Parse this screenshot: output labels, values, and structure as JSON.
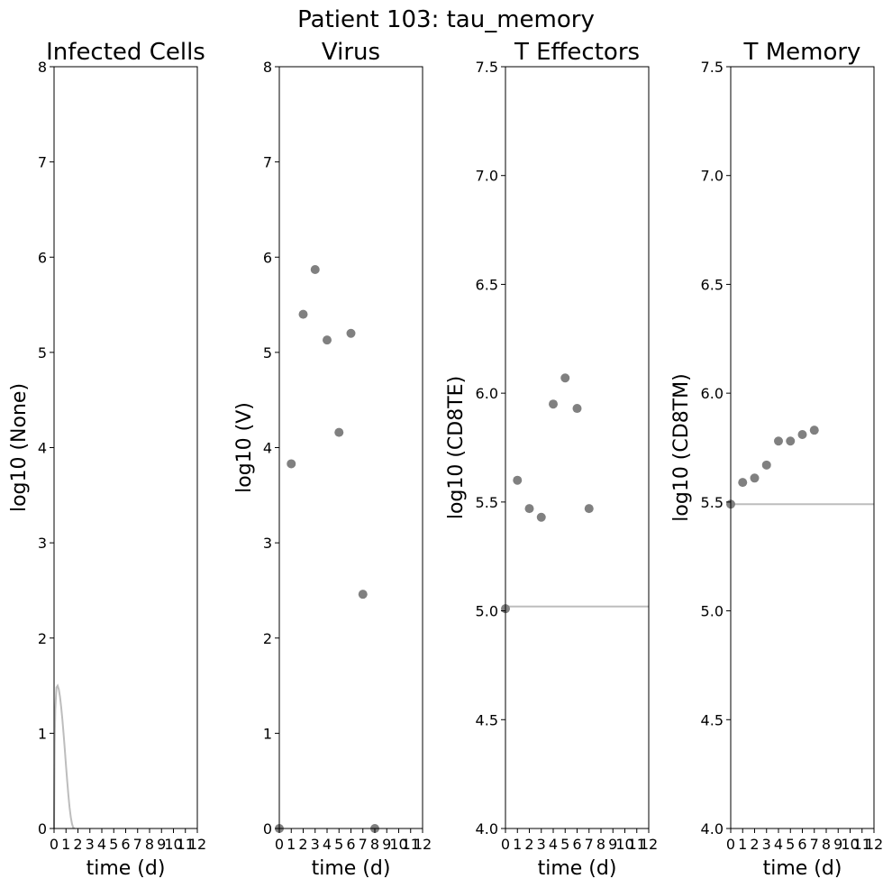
{
  "figure": {
    "suptitle": "Patient 103: tau_memory"
  },
  "chart_data": [
    {
      "type": "scatter",
      "title": "Infected Cells",
      "xlabel": "time (d)",
      "ylabel": "log10 (None)",
      "xlim": [
        0,
        12
      ],
      "ylim": [
        0,
        8
      ],
      "xticks": [
        0,
        1,
        2,
        3,
        4,
        5,
        6,
        7,
        8,
        9,
        10,
        11,
        12
      ],
      "yticks": [
        0,
        1,
        2,
        3,
        4,
        5,
        6,
        7,
        8
      ],
      "ytick_labels": [
        "0",
        "1",
        "2",
        "3",
        "4",
        "5",
        "6",
        "7",
        "8"
      ],
      "grid": false,
      "points": [],
      "model_curve": {
        "x": [
          0.0,
          0.05,
          0.1,
          0.2,
          0.3,
          0.4,
          0.5,
          0.6,
          0.7,
          0.8,
          0.9,
          1.0,
          1.1,
          1.2,
          1.3,
          1.4,
          1.5,
          1.6,
          1.7
        ],
        "y": [
          0.0,
          0.9,
          1.25,
          1.48,
          1.5,
          1.46,
          1.38,
          1.27,
          1.14,
          0.99,
          0.83,
          0.66,
          0.5,
          0.35,
          0.22,
          0.12,
          0.05,
          0.01,
          0.0
        ]
      },
      "colors": {
        "points": "#808080",
        "curve": "#bdbdbd"
      }
    },
    {
      "type": "scatter",
      "title": "Virus",
      "xlabel": "time (d)",
      "ylabel": "log10 (V)",
      "xlim": [
        0,
        12
      ],
      "ylim": [
        0,
        8
      ],
      "xticks": [
        0,
        1,
        2,
        3,
        4,
        5,
        6,
        7,
        8,
        9,
        10,
        11,
        12
      ],
      "yticks": [
        0,
        1,
        2,
        3,
        4,
        5,
        6,
        7,
        8
      ],
      "ytick_labels": [
        "0",
        "1",
        "2",
        "3",
        "4",
        "5",
        "6",
        "7",
        "8"
      ],
      "grid": false,
      "points": [
        {
          "x": 0,
          "y": 0.0
        },
        {
          "x": 1,
          "y": 3.83
        },
        {
          "x": 2,
          "y": 5.4
        },
        {
          "x": 3,
          "y": 5.87
        },
        {
          "x": 4,
          "y": 5.13
        },
        {
          "x": 5,
          "y": 4.16
        },
        {
          "x": 6,
          "y": 5.2
        },
        {
          "x": 7,
          "y": 2.46
        },
        {
          "x": 8,
          "y": 0.0
        }
      ],
      "model_curve": null,
      "colors": {
        "points": "#808080",
        "curve": "#bdbdbd"
      }
    },
    {
      "type": "scatter",
      "title": "T Effectors",
      "xlabel": "time (d)",
      "ylabel": "log10 (CD8TE)",
      "xlim": [
        0,
        12
      ],
      "ylim": [
        4.0,
        7.5
      ],
      "xticks": [
        0,
        1,
        2,
        3,
        4,
        5,
        6,
        7,
        8,
        9,
        10,
        11,
        12
      ],
      "yticks": [
        4.0,
        4.5,
        5.0,
        5.5,
        6.0,
        6.5,
        7.0,
        7.5
      ],
      "ytick_labels": [
        "4.0",
        "4.5",
        "5.0",
        "5.5",
        "6.0",
        "6.5",
        "7.0",
        "7.5"
      ],
      "grid": false,
      "points": [
        {
          "x": 0,
          "y": 5.01
        },
        {
          "x": 1,
          "y": 5.6
        },
        {
          "x": 2,
          "y": 5.47
        },
        {
          "x": 3,
          "y": 5.43
        },
        {
          "x": 4,
          "y": 5.95
        },
        {
          "x": 5,
          "y": 6.07
        },
        {
          "x": 6,
          "y": 5.93
        },
        {
          "x": 7,
          "y": 5.47
        }
      ],
      "model_curve": {
        "x": [
          0,
          12
        ],
        "y": [
          5.02,
          5.02
        ]
      },
      "colors": {
        "points": "#808080",
        "curve": "#bdbdbd"
      }
    },
    {
      "type": "scatter",
      "title": "T Memory",
      "xlabel": "time (d)",
      "ylabel": "log10 (CD8TM)",
      "xlim": [
        0,
        12
      ],
      "ylim": [
        4.0,
        7.5
      ],
      "xticks": [
        0,
        1,
        2,
        3,
        4,
        5,
        6,
        7,
        8,
        9,
        10,
        11,
        12
      ],
      "yticks": [
        4.0,
        4.5,
        5.0,
        5.5,
        6.0,
        6.5,
        7.0,
        7.5
      ],
      "ytick_labels": [
        "4.0",
        "4.5",
        "5.0",
        "5.5",
        "6.0",
        "6.5",
        "7.0",
        "7.5"
      ],
      "grid": false,
      "points": [
        {
          "x": 0,
          "y": 5.49
        },
        {
          "x": 1,
          "y": 5.59
        },
        {
          "x": 2,
          "y": 5.61
        },
        {
          "x": 3,
          "y": 5.67
        },
        {
          "x": 4,
          "y": 5.78
        },
        {
          "x": 5,
          "y": 5.78
        },
        {
          "x": 6,
          "y": 5.81
        },
        {
          "x": 7,
          "y": 5.83
        }
      ],
      "model_curve": {
        "x": [
          0,
          12
        ],
        "y": [
          5.49,
          5.49
        ]
      },
      "colors": {
        "points": "#808080",
        "curve": "#bdbdbd"
      }
    }
  ]
}
